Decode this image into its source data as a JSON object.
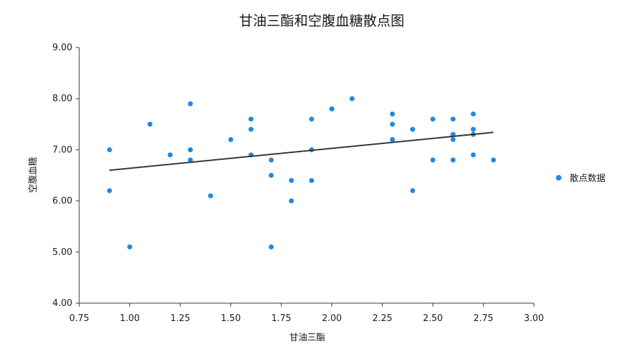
{
  "chart_data": {
    "type": "scatter",
    "title": "甘油三酯和空腹血糖散点图",
    "xlabel": "甘油三酯",
    "ylabel": "空腹血糖",
    "xlim": [
      0.75,
      3.0
    ],
    "ylim": [
      4.0,
      9.0
    ],
    "x_ticks": [
      "0.75",
      "1.00",
      "1.25",
      "1.50",
      "1.75",
      "2.00",
      "2.25",
      "2.50",
      "2.75",
      "3.00"
    ],
    "y_ticks": [
      "4.00",
      "5.00",
      "6.00",
      "7.00",
      "8.00",
      "9.00"
    ],
    "grid": false,
    "legend_position": "right",
    "series": [
      {
        "name": "散点数据",
        "color": "#1e88e5",
        "points": [
          [
            0.9,
            7.0
          ],
          [
            0.9,
            6.2
          ],
          [
            1.0,
            5.1
          ],
          [
            1.1,
            7.5
          ],
          [
            1.2,
            6.9
          ],
          [
            1.3,
            7.9
          ],
          [
            1.3,
            7.0
          ],
          [
            1.3,
            6.8
          ],
          [
            1.4,
            6.1
          ],
          [
            1.5,
            7.2
          ],
          [
            1.6,
            7.6
          ],
          [
            1.6,
            7.4
          ],
          [
            1.6,
            6.9
          ],
          [
            1.7,
            6.8
          ],
          [
            1.7,
            6.5
          ],
          [
            1.7,
            5.1
          ],
          [
            1.8,
            6.4
          ],
          [
            1.8,
            6.0
          ],
          [
            1.9,
            7.6
          ],
          [
            1.9,
            7.0
          ],
          [
            1.9,
            6.4
          ],
          [
            2.0,
            7.8
          ],
          [
            2.0,
            7.8
          ],
          [
            2.1,
            8.0
          ],
          [
            2.3,
            7.7
          ],
          [
            2.3,
            7.5
          ],
          [
            2.3,
            7.2
          ],
          [
            2.4,
            7.4
          ],
          [
            2.4,
            6.2
          ],
          [
            2.5,
            7.6
          ],
          [
            2.5,
            6.8
          ],
          [
            2.6,
            7.6
          ],
          [
            2.6,
            7.3
          ],
          [
            2.6,
            7.2
          ],
          [
            2.6,
            6.8
          ],
          [
            2.7,
            7.7
          ],
          [
            2.7,
            7.4
          ],
          [
            2.7,
            7.3
          ],
          [
            2.7,
            6.9
          ],
          [
            2.8,
            6.8
          ]
        ]
      }
    ],
    "trendline": {
      "color": "#333333",
      "start": [
        0.9,
        6.6
      ],
      "end": [
        2.8,
        7.34
      ]
    }
  }
}
